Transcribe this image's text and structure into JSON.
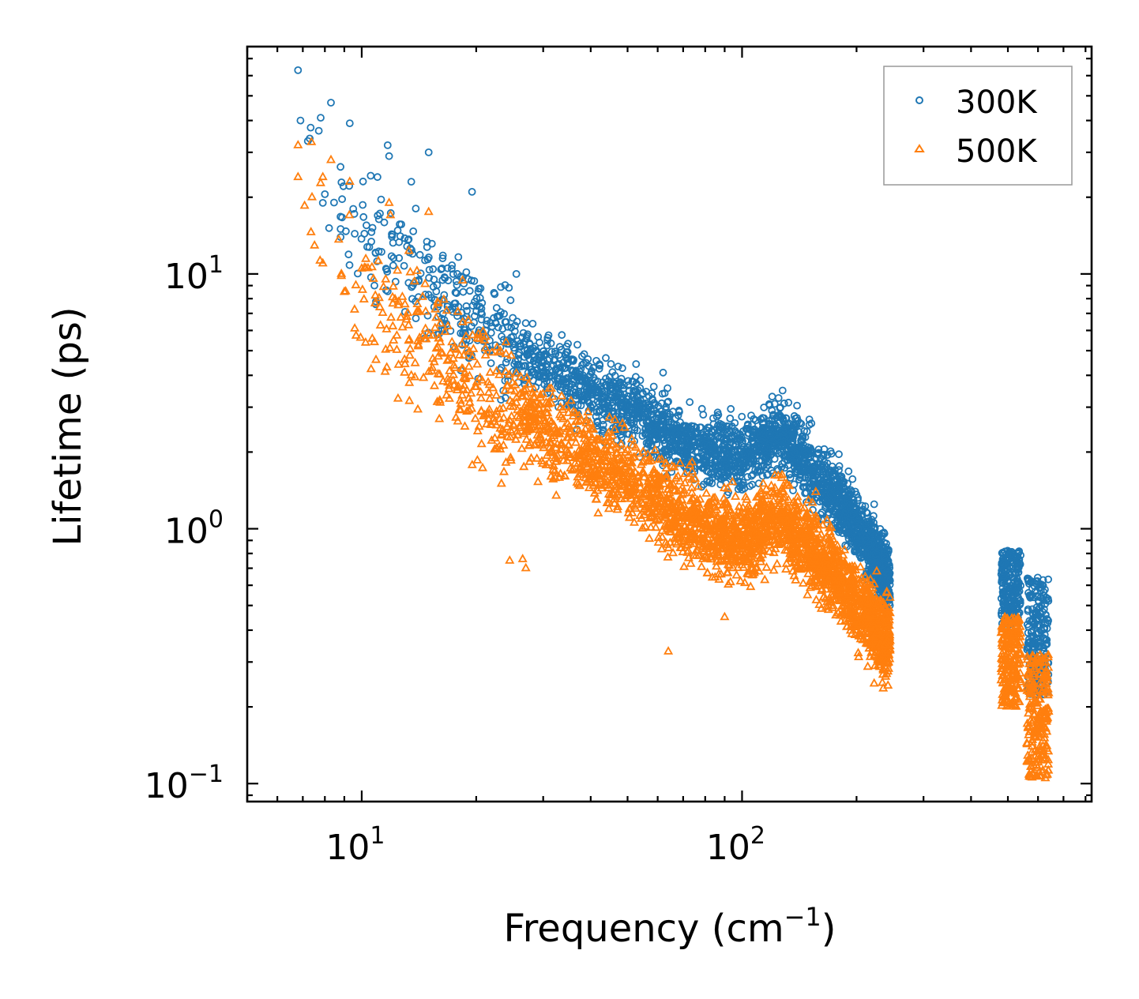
{
  "chart_data": {
    "type": "scatter",
    "xscale": "log",
    "yscale": "log",
    "xlim": [
      5.0,
      830
    ],
    "ylim": [
      0.085,
      78
    ],
    "xlabel": "Frequency (cm",
    "xlabel_sup": "−1",
    "xlabel_end": ")",
    "ylabel": "Lifetime (ps)",
    "x_ticks": [
      {
        "value": 10,
        "base": "10",
        "exp": "1"
      },
      {
        "value": 100,
        "base": "10",
        "exp": "2"
      }
    ],
    "y_ticks": [
      {
        "value": 0.1,
        "base": "10",
        "exp": "−1"
      },
      {
        "value": 1,
        "base": "10",
        "exp": "0"
      },
      {
        "value": 10,
        "base": "10",
        "exp": "1"
      }
    ],
    "legend_position": "top-right",
    "series": [
      {
        "name": "300K",
        "marker": "circle",
        "color": "#1f77b4",
        "trend": [
          [
            6.8,
            40
          ],
          [
            10,
            15
          ],
          [
            15,
            9
          ],
          [
            20,
            6.5
          ],
          [
            30,
            4.3
          ],
          [
            40,
            3.4
          ],
          [
            50,
            3.0
          ],
          [
            60,
            2.5
          ],
          [
            80,
            2.0
          ],
          [
            100,
            1.9
          ],
          [
            125,
            2.4
          ],
          [
            150,
            1.75
          ],
          [
            180,
            1.3
          ],
          [
            200,
            1.05
          ],
          [
            245,
            0.62
          ]
        ],
        "spread": 0.13,
        "high_freq_clusters": [
          {
            "x_range": [
              480,
              540
            ],
            "y_range": [
              0.42,
              0.82
            ]
          },
          {
            "x_range": [
              560,
              640
            ],
            "y_range": [
              0.22,
              0.65
            ]
          }
        ],
        "outliers": [
          [
            6.8,
            63
          ],
          [
            6.9,
            40
          ],
          [
            7.3,
            34
          ],
          [
            7.8,
            41
          ],
          [
            8.3,
            47
          ],
          [
            9.3,
            39
          ],
          [
            11,
            24
          ],
          [
            11.7,
            32
          ],
          [
            11.8,
            29
          ],
          [
            13.5,
            23
          ],
          [
            15,
            30
          ],
          [
            19.5,
            21
          ],
          [
            7.9,
            19
          ],
          [
            9.5,
            18
          ],
          [
            8.8,
            15
          ],
          [
            12,
            14
          ],
          [
            10.8,
            9
          ],
          [
            10.9,
            7.8
          ],
          [
            13,
            7.1
          ],
          [
            25.5,
            10
          ],
          [
            62,
            4.1
          ],
          [
            120,
            3.3
          ]
        ]
      },
      {
        "name": "500K",
        "marker": "triangle",
        "color": "#ff7f0e",
        "trend": [
          [
            6.8,
            24
          ],
          [
            10,
            9
          ],
          [
            15,
            5
          ],
          [
            20,
            3.6
          ],
          [
            30,
            2.4
          ],
          [
            40,
            1.9
          ],
          [
            50,
            1.6
          ],
          [
            60,
            1.3
          ],
          [
            80,
            1.0
          ],
          [
            100,
            0.9
          ],
          [
            125,
            1.1
          ],
          [
            150,
            0.85
          ],
          [
            180,
            0.62
          ],
          [
            200,
            0.5
          ],
          [
            245,
            0.36
          ]
        ],
        "spread": 0.16,
        "high_freq_clusters": [
          {
            "x_range": [
              480,
              540
            ],
            "y_range": [
              0.2,
              0.45
            ]
          },
          {
            "x_range": [
              560,
              640
            ],
            "y_range": [
              0.105,
              0.32
            ]
          }
        ],
        "outliers": [
          [
            6.8,
            32
          ],
          [
            6.8,
            24
          ],
          [
            7.4,
            20
          ],
          [
            7.9,
            24
          ],
          [
            8.3,
            28
          ],
          [
            9.3,
            23
          ],
          [
            11.8,
            19
          ],
          [
            11.9,
            17
          ],
          [
            15,
            17.5
          ],
          [
            7.9,
            11
          ],
          [
            10,
            10.5
          ],
          [
            9,
            8.5
          ],
          [
            10.8,
            5.4
          ],
          [
            10.9,
            4.6
          ],
          [
            12.5,
            4.4
          ],
          [
            13.5,
            4.0
          ],
          [
            24.5,
            0.75
          ],
          [
            27,
            0.7
          ],
          [
            26.5,
            0.76
          ],
          [
            64,
            0.33
          ],
          [
            90,
            0.45
          ]
        ]
      }
    ]
  }
}
